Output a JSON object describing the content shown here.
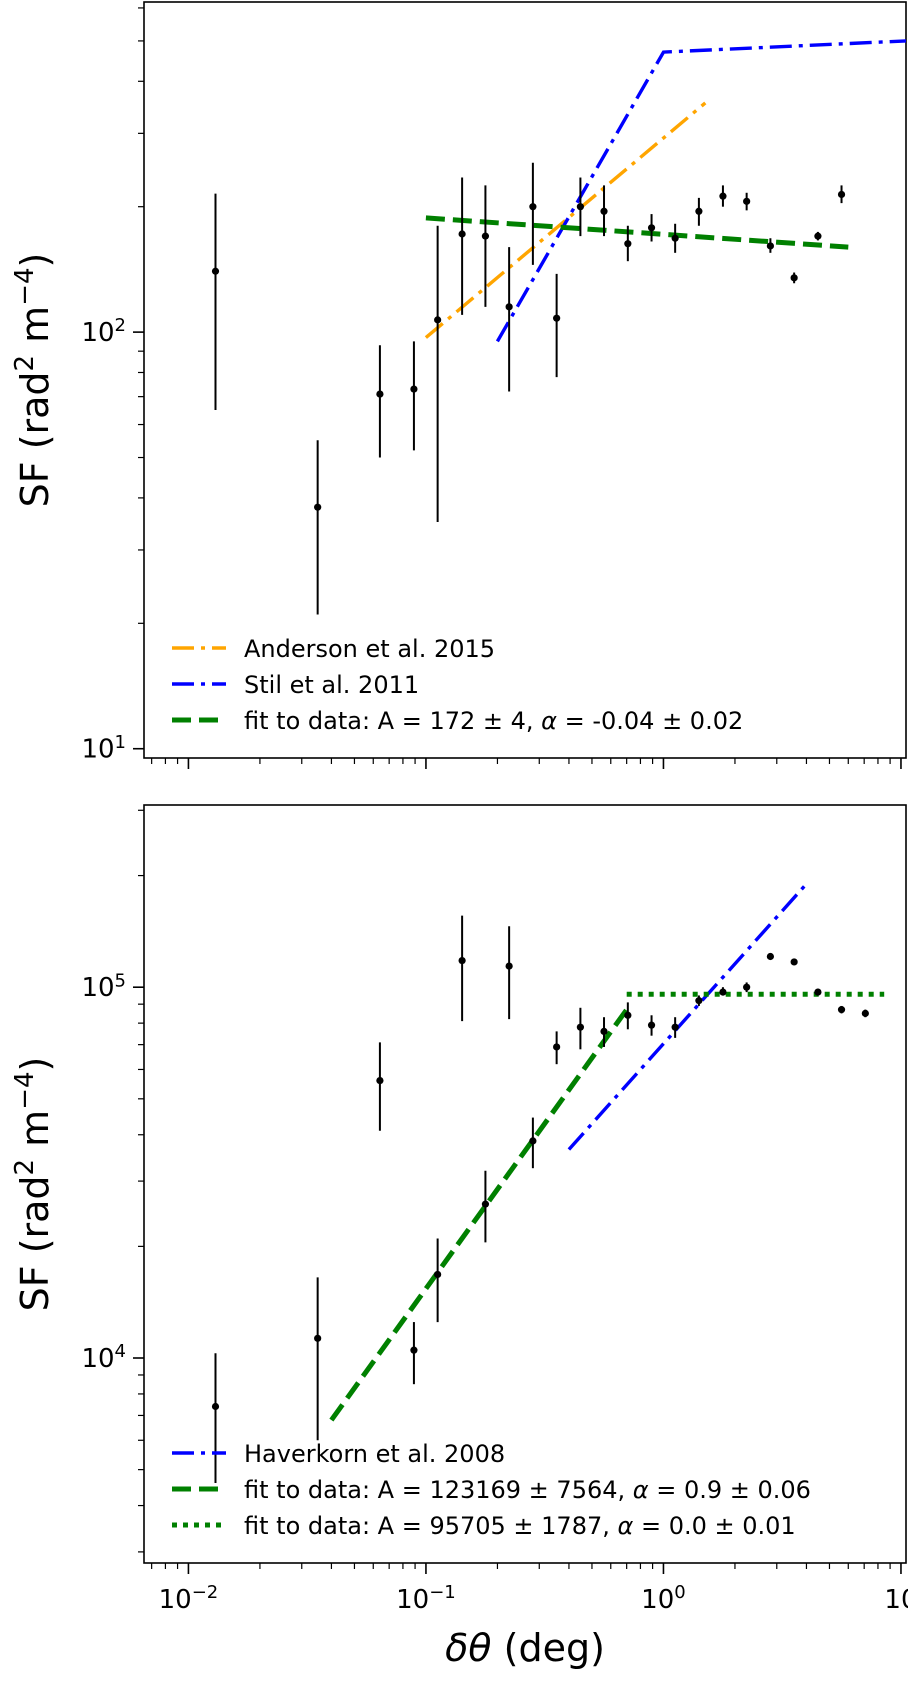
{
  "chart_data": [
    {
      "type": "scatter",
      "title": "",
      "xlabel": "",
      "ylabel": "SF (rad² m⁻⁴)",
      "xscale": "log",
      "yscale": "log",
      "xlim": [
        0.0065,
        10.5
      ],
      "ylim": [
        9.5,
        620
      ],
      "xticks": [
        {
          "value": 0.01,
          "label": ""
        },
        {
          "value": 0.1,
          "label": ""
        },
        {
          "value": 1,
          "label": ""
        },
        {
          "value": 10,
          "label": ""
        }
      ],
      "yticks": [
        {
          "value": 10,
          "label": "10¹"
        },
        {
          "value": 100,
          "label": "10²"
        }
      ],
      "grid": false,
      "legend_position": "lower-left",
      "points": [
        {
          "x": 0.013,
          "y": 140,
          "ylo": 65,
          "yhi": 215
        },
        {
          "x": 0.035,
          "y": 38,
          "ylo": 21,
          "yhi": 55
        },
        {
          "x": 0.064,
          "y": 71,
          "ylo": 50,
          "yhi": 93
        },
        {
          "x": 0.089,
          "y": 73,
          "ylo": 52,
          "yhi": 95
        },
        {
          "x": 0.112,
          "y": 107,
          "ylo": 35,
          "yhi": 180
        },
        {
          "x": 0.142,
          "y": 172,
          "ylo": 110,
          "yhi": 235
        },
        {
          "x": 0.178,
          "y": 170,
          "ylo": 115,
          "yhi": 225
        },
        {
          "x": 0.224,
          "y": 115,
          "ylo": 72,
          "yhi": 160
        },
        {
          "x": 0.282,
          "y": 200,
          "ylo": 145,
          "yhi": 255
        },
        {
          "x": 0.355,
          "y": 108,
          "ylo": 78,
          "yhi": 138
        },
        {
          "x": 0.447,
          "y": 200,
          "ylo": 170,
          "yhi": 235
        },
        {
          "x": 0.562,
          "y": 195,
          "ylo": 170,
          "yhi": 225
        },
        {
          "x": 0.708,
          "y": 163,
          "ylo": 148,
          "yhi": 180
        },
        {
          "x": 0.891,
          "y": 178,
          "ylo": 165,
          "yhi": 192
        },
        {
          "x": 1.12,
          "y": 168,
          "ylo": 155,
          "yhi": 182
        },
        {
          "x": 1.41,
          "y": 195,
          "ylo": 180,
          "yhi": 210
        },
        {
          "x": 1.78,
          "y": 212,
          "ylo": 200,
          "yhi": 225
        },
        {
          "x": 2.24,
          "y": 206,
          "ylo": 196,
          "yhi": 216
        },
        {
          "x": 2.82,
          "y": 161,
          "ylo": 155,
          "yhi": 168
        },
        {
          "x": 3.55,
          "y": 135,
          "ylo": 131,
          "yhi": 139
        },
        {
          "x": 4.47,
          "y": 170,
          "ylo": 166,
          "yhi": 174
        },
        {
          "x": 5.62,
          "y": 214,
          "ylo": 204,
          "yhi": 225
        }
      ],
      "lines": [
        {
          "name": "Anderson et al. 2015",
          "color": "#ffa500",
          "style": "dashdot",
          "x": [
            0.1,
            1.5
          ],
          "y": [
            97,
            355
          ]
        },
        {
          "name": "Stil et al. 2011",
          "color": "#0000ff",
          "style": "dashdot",
          "x": [
            0.2,
            1.0,
            10.5
          ],
          "y": [
            95,
            470,
            500
          ]
        },
        {
          "name": "fit to data: A = 172 ± 4, α = -0.04 ± 0.02",
          "color": "#008000",
          "style": "dashed",
          "x": [
            0.1,
            6.0
          ],
          "y": [
            188,
            160
          ]
        }
      ]
    },
    {
      "type": "scatter",
      "title": "",
      "xlabel": "δθ (deg)",
      "ylabel": "SF (rad² m⁻⁴)",
      "xscale": "log",
      "yscale": "log",
      "xlim": [
        0.0065,
        10.5
      ],
      "ylim": [
        2800,
        310000
      ],
      "xticks": [
        {
          "value": 0.01,
          "label": "10⁻²"
        },
        {
          "value": 0.1,
          "label": "10⁻¹"
        },
        {
          "value": 1,
          "label": "10⁰"
        },
        {
          "value": 10,
          "label": "10"
        }
      ],
      "yticks": [
        {
          "value": 10000,
          "label": "10⁴"
        },
        {
          "value": 100000,
          "label": "10⁵"
        }
      ],
      "grid": false,
      "legend_position": "lower-left",
      "points": [
        {
          "x": 0.013,
          "y": 7400,
          "ylo": 4600,
          "yhi": 10300
        },
        {
          "x": 0.035,
          "y": 11300,
          "ylo": 6000,
          "yhi": 16500
        },
        {
          "x": 0.064,
          "y": 56000,
          "ylo": 41000,
          "yhi": 71000
        },
        {
          "x": 0.089,
          "y": 10500,
          "ylo": 8500,
          "yhi": 12500
        },
        {
          "x": 0.112,
          "y": 16800,
          "ylo": 12500,
          "yhi": 21000
        },
        {
          "x": 0.142,
          "y": 118000,
          "ylo": 81000,
          "yhi": 156000
        },
        {
          "x": 0.178,
          "y": 26000,
          "ylo": 20500,
          "yhi": 32000
        },
        {
          "x": 0.224,
          "y": 114000,
          "ylo": 82000,
          "yhi": 146000
        },
        {
          "x": 0.282,
          "y": 38500,
          "ylo": 32500,
          "yhi": 44500
        },
        {
          "x": 0.355,
          "y": 69000,
          "ylo": 62000,
          "yhi": 76000
        },
        {
          "x": 0.447,
          "y": 78000,
          "ylo": 68000,
          "yhi": 88000
        },
        {
          "x": 0.562,
          "y": 76000,
          "ylo": 69000,
          "yhi": 83000
        },
        {
          "x": 0.708,
          "y": 84000,
          "ylo": 77000,
          "yhi": 91000
        },
        {
          "x": 0.891,
          "y": 79000,
          "ylo": 74000,
          "yhi": 84000
        },
        {
          "x": 1.12,
          "y": 78000,
          "ylo": 73000,
          "yhi": 83000
        },
        {
          "x": 1.41,
          "y": 92000,
          "ylo": 89000,
          "yhi": 95000
        },
        {
          "x": 1.78,
          "y": 97000,
          "ylo": 95000,
          "yhi": 100000
        },
        {
          "x": 2.24,
          "y": 100000,
          "ylo": 97000,
          "yhi": 103000
        },
        {
          "x": 2.82,
          "y": 121000,
          "ylo": 119000,
          "yhi": 123000
        },
        {
          "x": 3.55,
          "y": 117000,
          "ylo": 115000,
          "yhi": 119000
        },
        {
          "x": 4.47,
          "y": 97000,
          "ylo": 95000,
          "yhi": 99000
        },
        {
          "x": 5.62,
          "y": 87000,
          "ylo": 85000,
          "yhi": 89000
        },
        {
          "x": 7.08,
          "y": 85000,
          "ylo": 83000,
          "yhi": 87000
        }
      ],
      "lines": [
        {
          "name": "Haverkorn et al. 2008",
          "color": "#0000ff",
          "style": "dashdot",
          "x": [
            0.4,
            4.0
          ],
          "y": [
            36500,
            190000
          ]
        },
        {
          "name": "fit to data: A = 123169 ± 7564, α = 0.9 ± 0.06",
          "color": "#008000",
          "style": "dashed",
          "x": [
            0.04,
            0.7
          ],
          "y": [
            6800,
            87000
          ]
        },
        {
          "name": "fit to data: A = 95705 ± 1787, α = 0.0 ± 0.01",
          "color": "#008000",
          "style": "dotted",
          "x": [
            0.7,
            8.5
          ],
          "y": [
            95700,
            95700
          ]
        }
      ]
    }
  ]
}
